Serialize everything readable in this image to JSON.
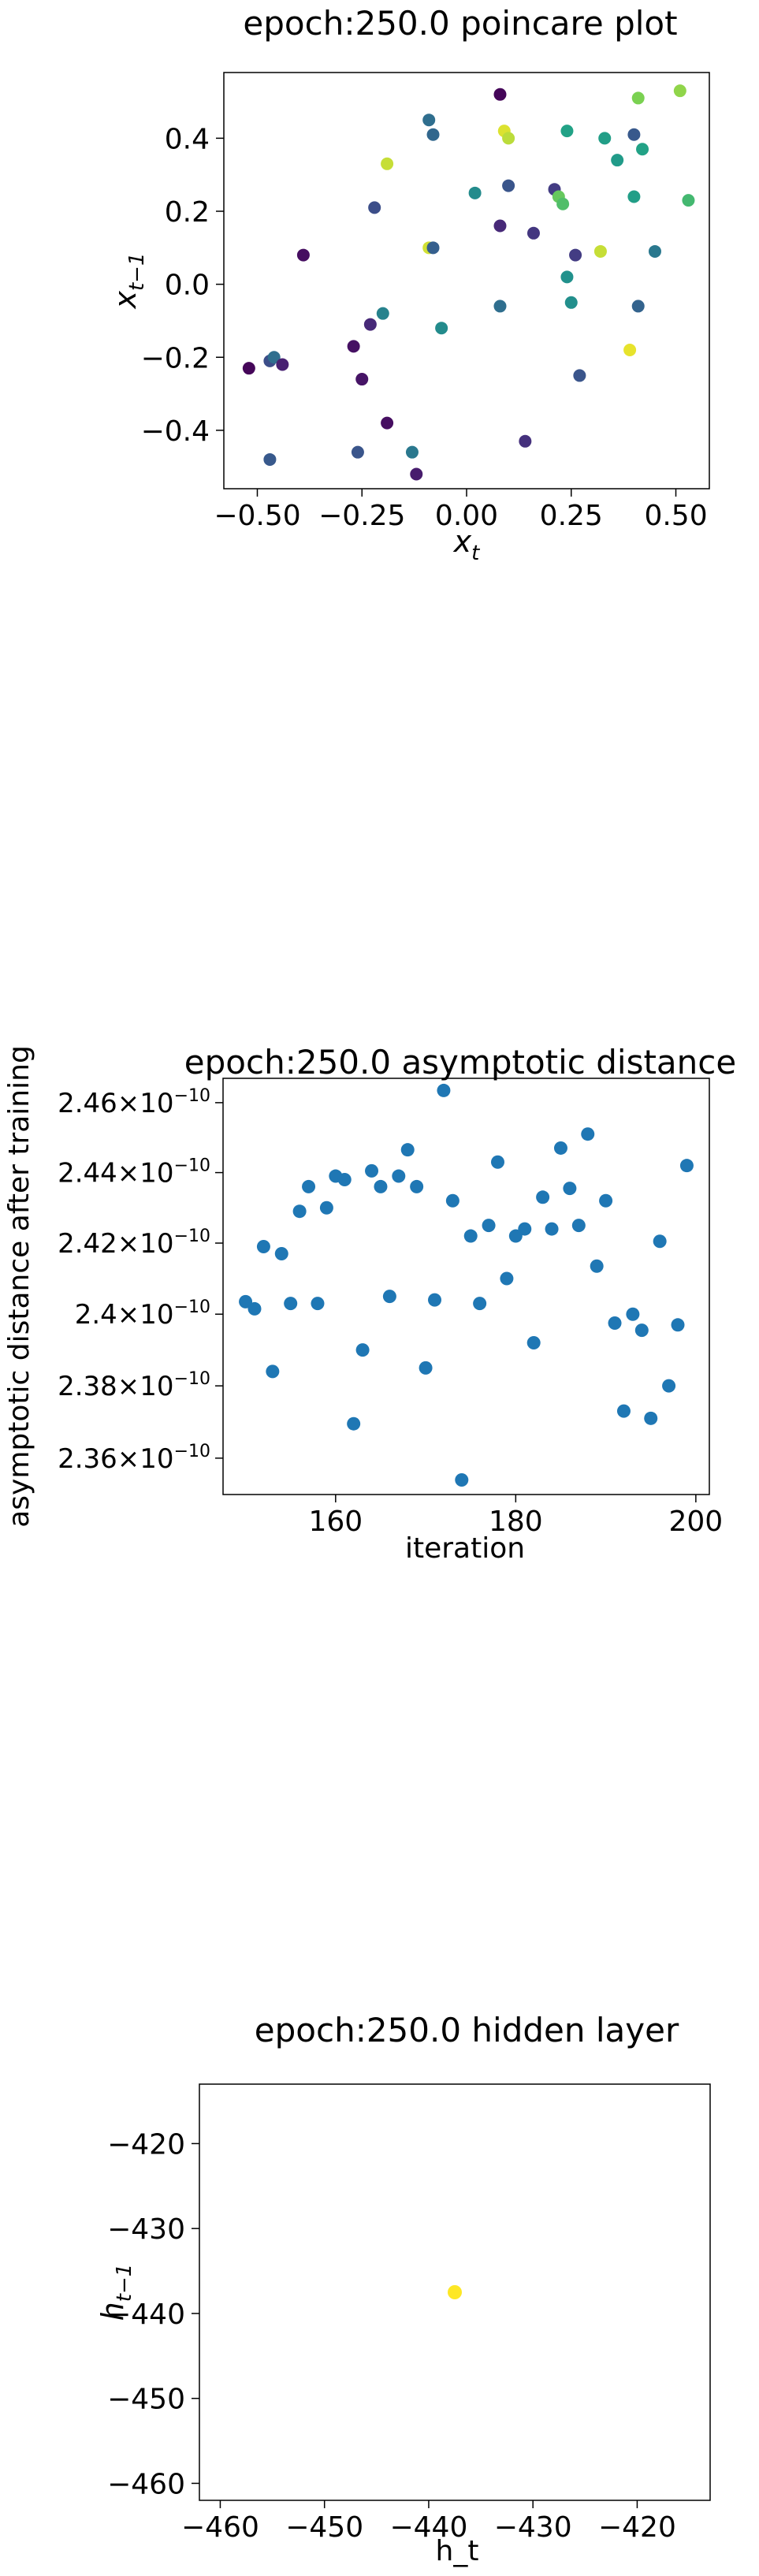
{
  "chart_data": [
    {
      "type": "scatter",
      "title": "epoch:250.0 poincare plot",
      "xlabel_main": "x",
      "xlabel_sub": "t",
      "ylabel_main": "x",
      "ylabel_sub": "t−1",
      "xlim": [
        -0.58,
        0.58
      ],
      "ylim": [
        -0.56,
        0.58
      ],
      "xticks": [
        -0.5,
        -0.25,
        0.0,
        0.25,
        0.5
      ],
      "xtick_labels": [
        "−0.50",
        "−0.25",
        "0.00",
        "0.25",
        "0.50"
      ],
      "yticks": [
        -0.4,
        -0.2,
        0.0,
        0.2,
        0.4
      ],
      "ytick_labels": [
        "−0.4",
        "−0.2",
        "0.0",
        "0.2",
        "0.4"
      ],
      "colormap": "viridis",
      "points": [
        {
          "x": -0.52,
          "y": -0.23,
          "c": 0.02
        },
        {
          "x": -0.47,
          "y": -0.21,
          "c": 0.3
        },
        {
          "x": -0.46,
          "y": -0.2,
          "c": 0.45
        },
        {
          "x": -0.47,
          "y": -0.48,
          "c": 0.35
        },
        {
          "x": -0.44,
          "y": -0.22,
          "c": 0.12
        },
        {
          "x": -0.39,
          "y": 0.08,
          "c": 0.05
        },
        {
          "x": -0.27,
          "y": -0.17,
          "c": 0.06
        },
        {
          "x": -0.26,
          "y": -0.46,
          "c": 0.33
        },
        {
          "x": -0.25,
          "y": -0.26,
          "c": 0.07
        },
        {
          "x": -0.23,
          "y": -0.11,
          "c": 0.15
        },
        {
          "x": -0.22,
          "y": 0.21,
          "c": 0.3
        },
        {
          "x": -0.2,
          "y": -0.08,
          "c": 0.55
        },
        {
          "x": -0.19,
          "y": -0.38,
          "c": 0.05
        },
        {
          "x": -0.19,
          "y": 0.33,
          "c": 0.95
        },
        {
          "x": -0.13,
          "y": -0.46,
          "c": 0.5
        },
        {
          "x": -0.12,
          "y": -0.52,
          "c": 0.1
        },
        {
          "x": -0.09,
          "y": 0.45,
          "c": 0.45
        },
        {
          "x": -0.08,
          "y": 0.41,
          "c": 0.42
        },
        {
          "x": -0.09,
          "y": 0.1,
          "c": 0.96
        },
        {
          "x": -0.08,
          "y": 0.1,
          "c": 0.38
        },
        {
          "x": -0.06,
          "y": -0.12,
          "c": 0.6
        },
        {
          "x": 0.02,
          "y": 0.25,
          "c": 0.6
        },
        {
          "x": 0.08,
          "y": 0.52,
          "c": 0.02
        },
        {
          "x": 0.08,
          "y": -0.06,
          "c": 0.45
        },
        {
          "x": 0.08,
          "y": 0.16,
          "c": 0.15
        },
        {
          "x": 0.09,
          "y": 0.42,
          "c": 0.97
        },
        {
          "x": 0.1,
          "y": 0.4,
          "c": 0.94
        },
        {
          "x": 0.1,
          "y": 0.27,
          "c": 0.33
        },
        {
          "x": 0.14,
          "y": -0.43,
          "c": 0.18
        },
        {
          "x": 0.16,
          "y": 0.14,
          "c": 0.2
        },
        {
          "x": 0.21,
          "y": 0.26,
          "c": 0.22
        },
        {
          "x": 0.22,
          "y": 0.24,
          "c": 0.85
        },
        {
          "x": 0.23,
          "y": 0.22,
          "c": 0.82
        },
        {
          "x": 0.24,
          "y": 0.42,
          "c": 0.72
        },
        {
          "x": 0.24,
          "y": 0.02,
          "c": 0.63
        },
        {
          "x": 0.25,
          "y": -0.05,
          "c": 0.62
        },
        {
          "x": 0.26,
          "y": 0.08,
          "c": 0.22
        },
        {
          "x": 0.27,
          "y": -0.25,
          "c": 0.33
        },
        {
          "x": 0.32,
          "y": 0.09,
          "c": 0.95
        },
        {
          "x": 0.33,
          "y": 0.4,
          "c": 0.7
        },
        {
          "x": 0.36,
          "y": 0.34,
          "c": 0.68
        },
        {
          "x": 0.39,
          "y": -0.18,
          "c": 0.98
        },
        {
          "x": 0.4,
          "y": 0.41,
          "c": 0.35
        },
        {
          "x": 0.4,
          "y": 0.24,
          "c": 0.7
        },
        {
          "x": 0.41,
          "y": -0.06,
          "c": 0.4
        },
        {
          "x": 0.41,
          "y": 0.51,
          "c": 0.88
        },
        {
          "x": 0.42,
          "y": 0.37,
          "c": 0.72
        },
        {
          "x": 0.45,
          "y": 0.09,
          "c": 0.5
        },
        {
          "x": 0.51,
          "y": 0.53,
          "c": 0.9
        },
        {
          "x": 0.53,
          "y": 0.23,
          "c": 0.8
        }
      ]
    },
    {
      "type": "scatter",
      "title": "epoch:250.0 asymptotic distance",
      "xlabel": "iteration",
      "ylabel": "asymptotic distance after training",
      "xlim": [
        147.5,
        201.5
      ],
      "ylim": [
        2.35,
        2.467
      ],
      "yscale": "log",
      "y_unit": "×10⁻¹⁰",
      "xticks": [
        160,
        180,
        200
      ],
      "yticks": [
        2.36,
        2.38,
        2.4,
        2.42,
        2.44,
        2.46
      ],
      "ytick_mantissas": [
        "2.36",
        "2.38",
        "2.4",
        "2.42",
        "2.44",
        "2.46"
      ],
      "ytick_times": "×",
      "ytick_base": "10",
      "ytick_exponent": "−10",
      "color": "#1f77b4",
      "x": [
        150,
        151,
        152,
        153,
        154,
        155,
        156,
        157,
        158,
        159,
        160,
        161,
        162,
        163,
        164,
        165,
        166,
        167,
        168,
        169,
        170,
        171,
        172,
        173,
        174,
        175,
        176,
        177,
        178,
        179,
        180,
        181,
        182,
        183,
        184,
        185,
        186,
        187,
        188,
        189,
        190,
        191,
        192,
        193,
        194,
        195,
        196,
        197,
        198,
        199
      ],
      "y": [
        2.4035,
        2.4015,
        2.419,
        2.384,
        2.417,
        2.403,
        2.429,
        2.436,
        2.403,
        2.43,
        2.439,
        2.438,
        2.3695,
        2.39,
        2.4405,
        2.436,
        2.405,
        2.439,
        2.4465,
        2.436,
        2.385,
        2.404,
        2.4635,
        2.432,
        2.354,
        2.422,
        2.403,
        2.425,
        2.443,
        2.41,
        2.422,
        2.424,
        2.392,
        2.433,
        2.424,
        2.447,
        2.4355,
        2.425,
        2.451,
        2.4135,
        2.432,
        2.3975,
        2.373,
        2.4,
        2.3955,
        2.371,
        2.4205,
        2.38,
        2.397,
        2.442
      ]
    },
    {
      "type": "scatter",
      "title": "epoch:250.0 hidden layer",
      "xlabel": "h_t",
      "ylabel_main": "h",
      "ylabel_sub": "t−1",
      "xlim": [
        -462,
        -413
      ],
      "ylim": [
        -462,
        -413
      ],
      "xticks": [
        -460,
        -450,
        -440,
        -430,
        -420
      ],
      "xtick_labels": [
        "−460",
        "−450",
        "−440",
        "−430",
        "−420"
      ],
      "yticks": [
        -420,
        -430,
        -440,
        -450,
        -460
      ],
      "ytick_labels": [
        "−420",
        "−430",
        "−440",
        "−450",
        "−460"
      ],
      "color": "#fde725",
      "points": [
        {
          "x": -437.5,
          "y": -437.5
        }
      ]
    }
  ]
}
